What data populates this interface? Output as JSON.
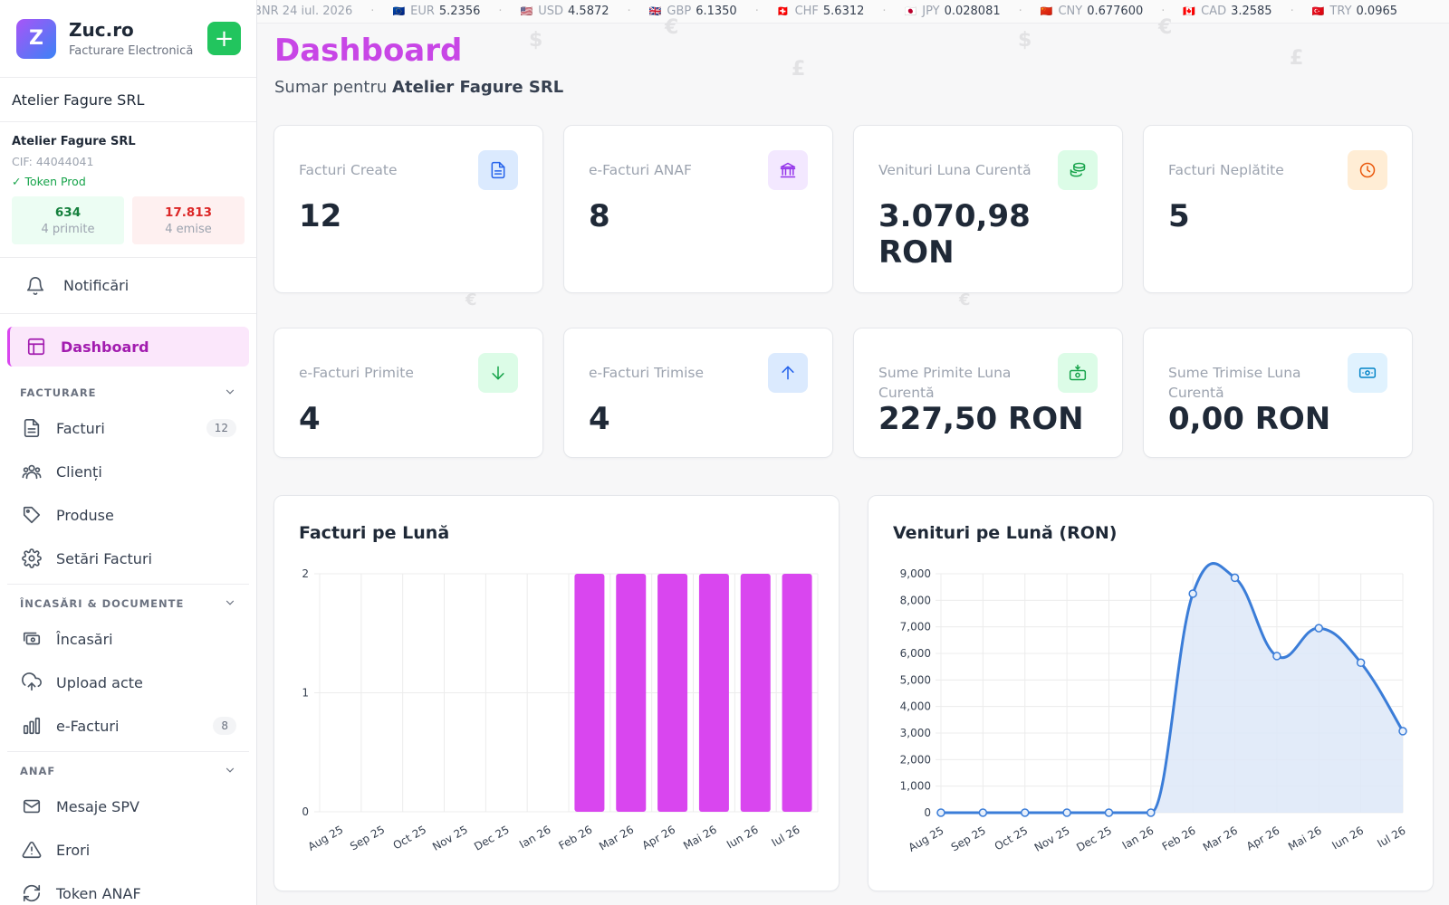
{
  "app": {
    "logo_letter": "Z",
    "name": "Zuc.ro",
    "subtitle": "Facturare Electronică",
    "add_label": "+"
  },
  "company_selector": {
    "value": "Atelier Fagure SRL"
  },
  "company_card": {
    "name": "Atelier Fagure SRL",
    "cif": "CIF: 44044041",
    "token": "✓ Token Prod",
    "received": {
      "count": "634",
      "label": "4 primite"
    },
    "issued": {
      "count": "17.813",
      "label": "4 emise"
    }
  },
  "nav": {
    "notifications": "Notificări",
    "dashboard": "Dashboard",
    "sections": [
      {
        "title": "FACTURARE",
        "items": [
          {
            "label": "Facturi",
            "icon": "document-icon",
            "badge": "12"
          },
          {
            "label": "Clienți",
            "icon": "users-icon",
            "badge": ""
          },
          {
            "label": "Produse",
            "icon": "tag-icon",
            "badge": ""
          },
          {
            "label": "Setări Facturi",
            "icon": "gear-icon",
            "badge": ""
          }
        ]
      },
      {
        "title": "ÎNCASĂRI & DOCUMENTE",
        "items": [
          {
            "label": "Încasări",
            "icon": "cash-icon",
            "badge": ""
          },
          {
            "label": "Upload acte",
            "icon": "upload-cloud-icon",
            "badge": ""
          },
          {
            "label": "e-Facturi",
            "icon": "bar-chart-icon",
            "badge": "8"
          }
        ]
      },
      {
        "title": "ANAF",
        "items": [
          {
            "label": "Mesaje SPV",
            "icon": "mail-icon",
            "badge": ""
          },
          {
            "label": "Erori",
            "icon": "warning-icon",
            "badge": ""
          },
          {
            "label": "Token ANAF",
            "icon": "refresh-icon",
            "badge": ""
          }
        ]
      }
    ]
  },
  "ticker": [
    {
      "code": "BNR 24 iul. 2026",
      "value": "",
      "flag": ""
    },
    {
      "code": "EUR",
      "value": "5.2356",
      "flag": "🇪🇺"
    },
    {
      "code": "USD",
      "value": "4.5872",
      "flag": "🇺🇸"
    },
    {
      "code": "GBP",
      "value": "6.1350",
      "flag": "🇬🇧"
    },
    {
      "code": "CHF",
      "value": "5.6312",
      "flag": "🇨🇭"
    },
    {
      "code": "JPY",
      "value": "0.028081",
      "flag": "🇯🇵"
    },
    {
      "code": "CNY",
      "value": "0.677600",
      "flag": "🇨🇳"
    },
    {
      "code": "CAD",
      "value": "3.2585",
      "flag": "🇨🇦"
    },
    {
      "code": "TRY",
      "value": "0.0965",
      "flag": "🇹🇷"
    }
  ],
  "header": {
    "title": "Dashboard",
    "subtitle_prefix": "Sumar pentru",
    "subtitle_company": "Atelier Fagure SRL"
  },
  "stats": [
    {
      "label": "Facturi Create",
      "value": "12",
      "icon": "document-icon",
      "icon_bg": "#dbeafe",
      "icon_color": "#2563eb"
    },
    {
      "label": "e-Facturi ANAF",
      "value": "8",
      "icon": "bank-icon",
      "icon_bg": "#f3e8ff",
      "icon_color": "#9333ea"
    },
    {
      "label": "Venituri Luna Curentă",
      "value": "3.070,98 RON",
      "icon": "coins-icon",
      "icon_bg": "#dcfce7",
      "icon_color": "#16a34a"
    },
    {
      "label": "Facturi Neplătite",
      "value": "5",
      "icon": "clock-icon",
      "icon_bg": "#ffedd5",
      "icon_color": "#ea580c"
    },
    {
      "label": "e-Facturi Primite",
      "value": "4",
      "icon": "arrow-down-icon",
      "icon_bg": "#dcfce7",
      "icon_color": "#16a34a"
    },
    {
      "label": "e-Facturi Trimise",
      "value": "4",
      "icon": "arrow-up-icon",
      "icon_bg": "#dbeafe",
      "icon_color": "#2563eb"
    },
    {
      "label": "Sume Primite Luna Curentă",
      "value": "227,50 RON",
      "icon": "money-in-icon",
      "icon_bg": "#dcfce7",
      "icon_color": "#16a34a"
    },
    {
      "label": "Sume Trimise Luna Curentă",
      "value": "0,00 RON",
      "icon": "money-out-icon",
      "icon_bg": "#e0f2fe",
      "icon_color": "#0284c7"
    }
  ],
  "chart_data": [
    {
      "type": "bar",
      "title": "Facturi pe Lună",
      "categories": [
        "Aug 25",
        "Sep 25",
        "Oct 25",
        "Nov 25",
        "Dec 25",
        "Ian 26",
        "Feb 26",
        "Mar 26",
        "Apr 26",
        "Mai 26",
        "Iun 26",
        "Iul 26"
      ],
      "values": [
        0,
        0,
        0,
        0,
        0,
        0,
        2,
        2,
        2,
        2,
        2,
        2
      ],
      "ylim": [
        0,
        2
      ],
      "yticks": [
        "0",
        "1",
        "2"
      ],
      "color": "#d946ef",
      "grid": true
    },
    {
      "type": "area",
      "title": "Venituri pe Lună (RON)",
      "categories": [
        "Aug 25",
        "Sep 25",
        "Oct 25",
        "Nov 25",
        "Dec 25",
        "Ian 26",
        "Feb 26",
        "Mar 26",
        "Apr 26",
        "Mai 26",
        "Iun 26",
        "Iul 26"
      ],
      "values": [
        0,
        0,
        0,
        0,
        0,
        0,
        8250,
        8850,
        5900,
        6950,
        5650,
        3070.98
      ],
      "ylim": [
        0,
        9000
      ],
      "yticks": [
        "0",
        "1,000",
        "2,000",
        "3,000",
        "4,000",
        "5,000",
        "6,000",
        "7,000",
        "8,000",
        "9,000"
      ],
      "color": "#3b7dd8",
      "fill": "#dde8f8",
      "grid": true
    }
  ]
}
